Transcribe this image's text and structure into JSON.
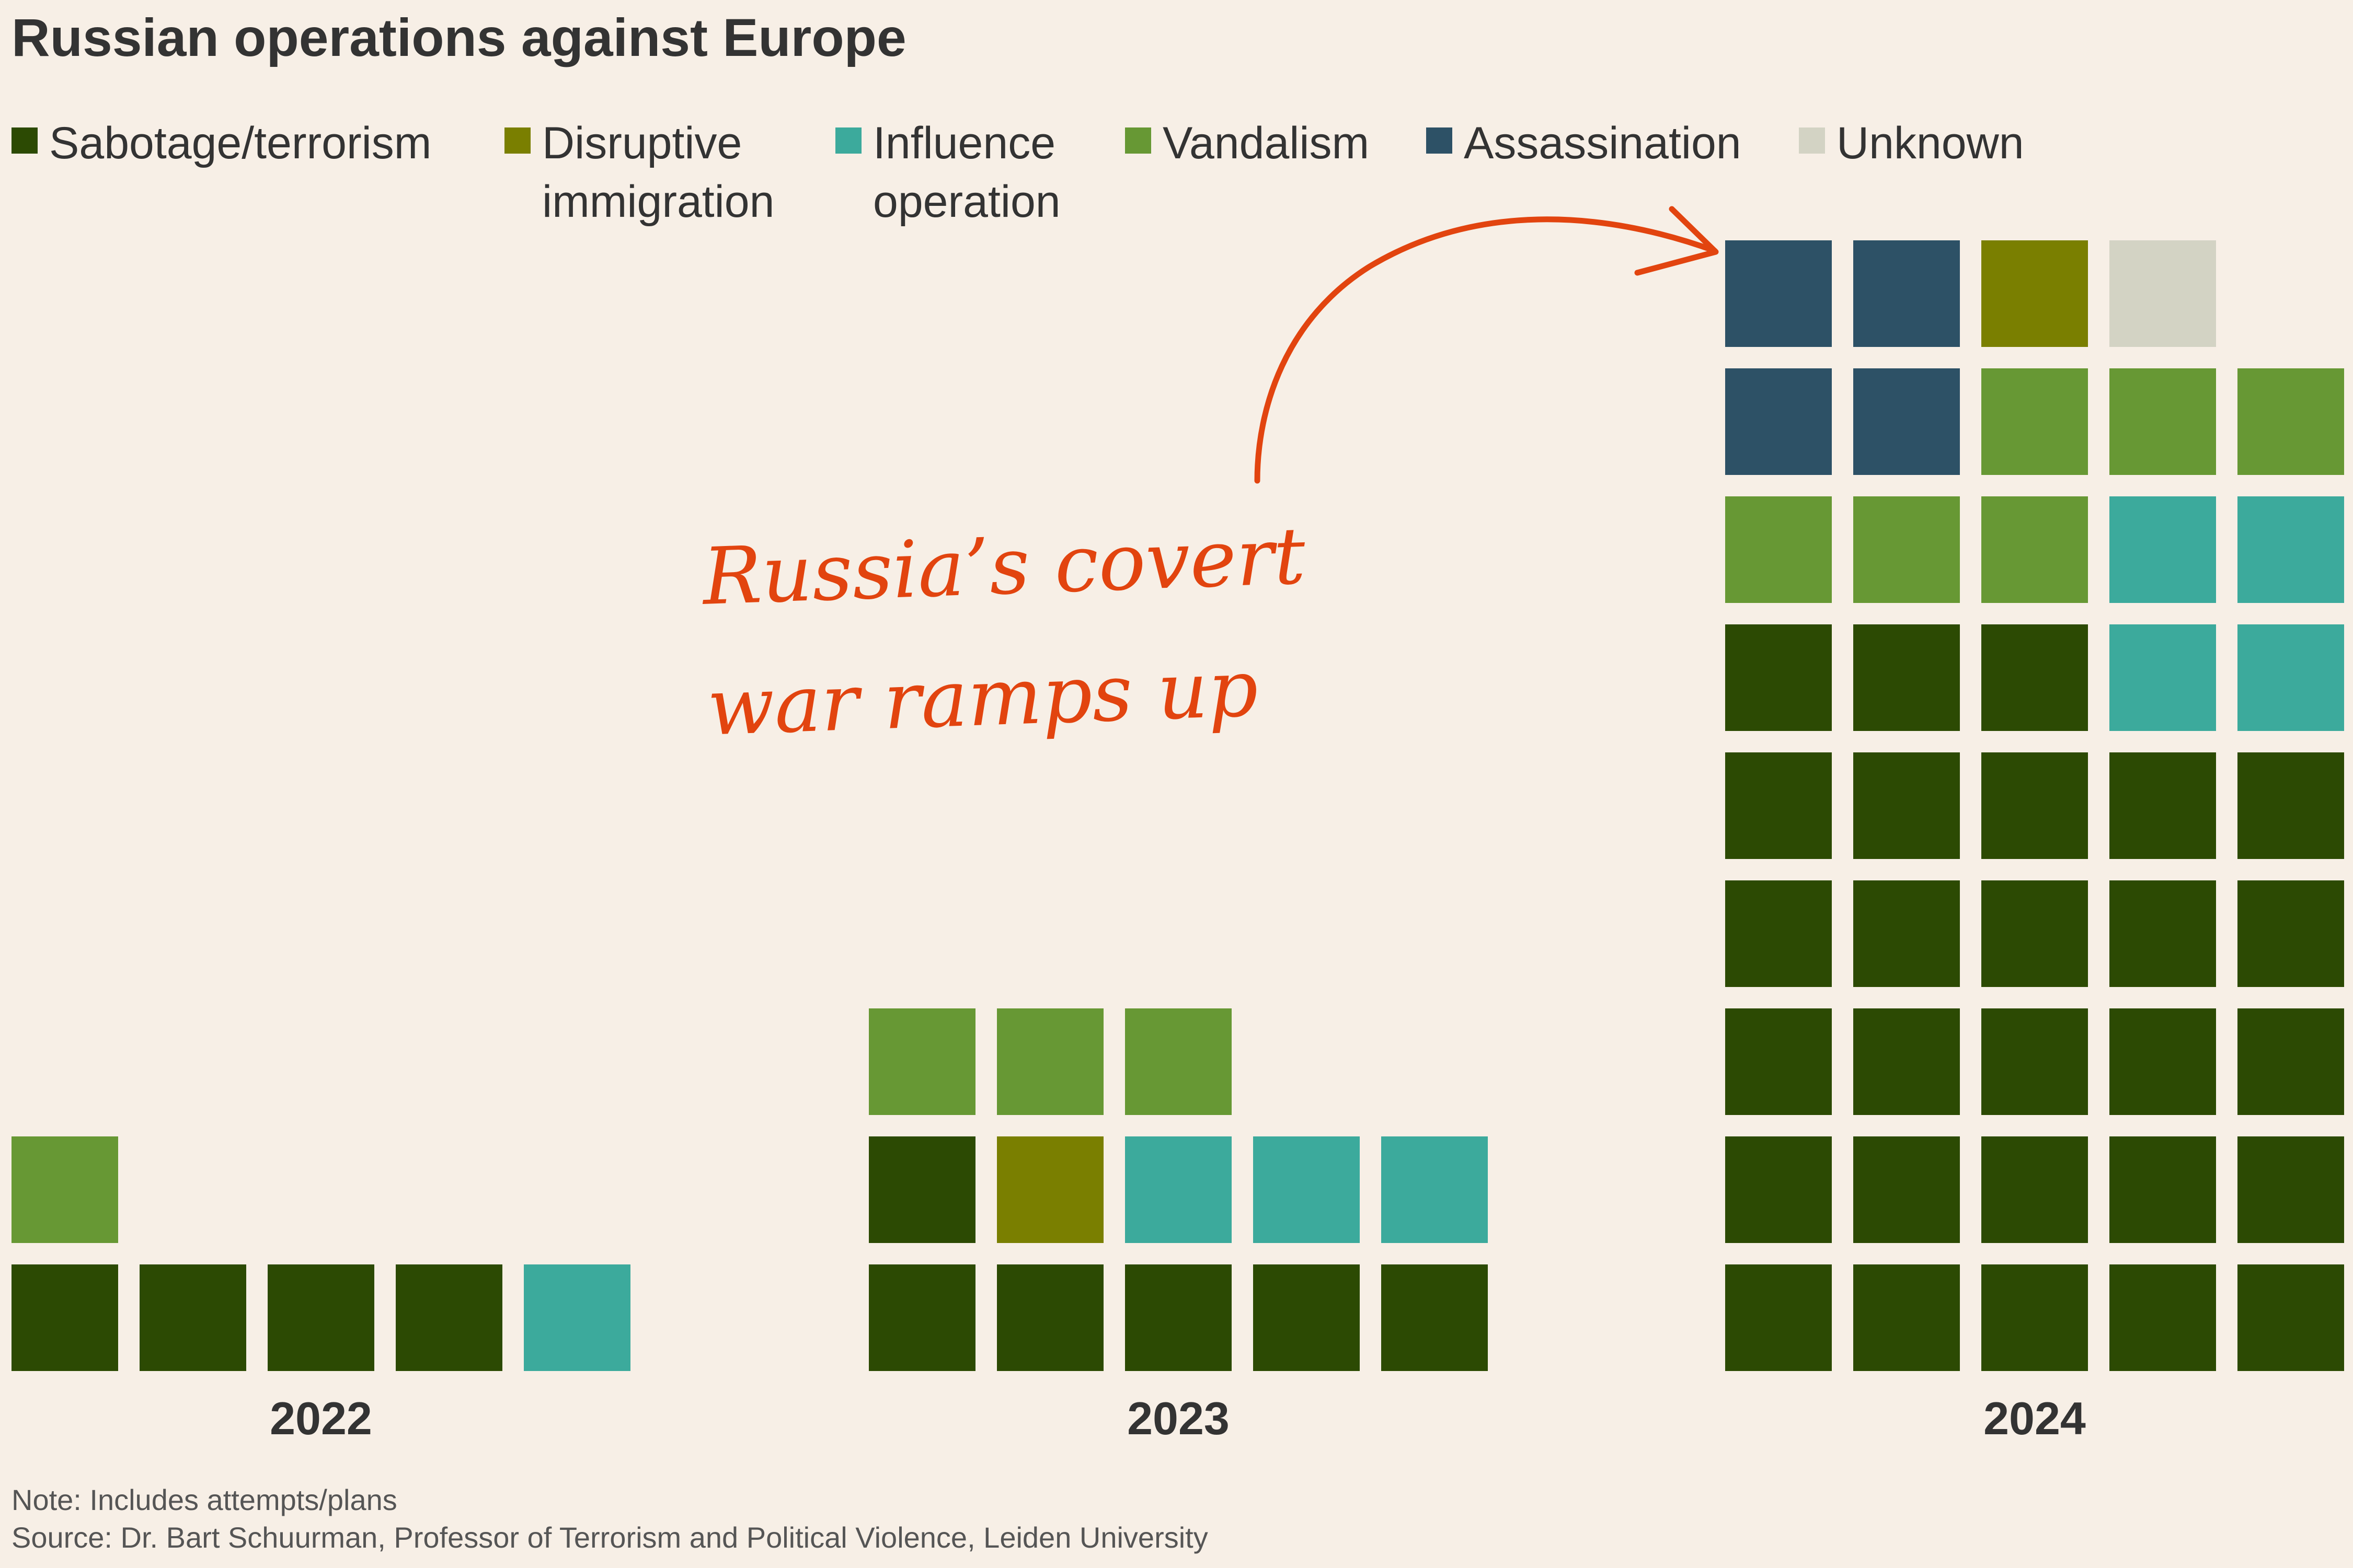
{
  "title": "Russian operations against Europe",
  "legend": [
    {
      "label": "Sabotage/terrorism",
      "color": "#2c4a03"
    },
    {
      "label": "Disruptive\nimmigration",
      "color": "#7a7f00"
    },
    {
      "label": "Influence\noperation",
      "color": "#3caa9c"
    },
    {
      "label": "Vandalism",
      "color": "#679834"
    },
    {
      "label": "Assassination",
      "color": "#2d5166"
    },
    {
      "label": "Unknown",
      "color": "#d3d3c4"
    }
  ],
  "annotation": {
    "text": "Russia’s covert\nwar ramps up",
    "color": "#e2440f"
  },
  "chart_data": {
    "type": "waffle",
    "title": "Russian operations against Europe",
    "categories": [
      "2022",
      "2023",
      "2024"
    ],
    "series": [
      {
        "name": "Sabotage/terrorism",
        "values": [
          4,
          6,
          28
        ]
      },
      {
        "name": "Disruptive immigration",
        "values": [
          0,
          1,
          1
        ]
      },
      {
        "name": "Influence operation",
        "values": [
          1,
          3,
          4
        ]
      },
      {
        "name": "Vandalism",
        "values": [
          1,
          3,
          6
        ]
      },
      {
        "name": "Assassination",
        "values": [
          0,
          0,
          4
        ]
      },
      {
        "name": "Unknown",
        "values": [
          0,
          0,
          1
        ]
      }
    ],
    "grids": [
      {
        "year": "2022",
        "rows": [
          [
            "Sabotage/terrorism",
            "Sabotage/terrorism",
            "Sabotage/terrorism",
            "Sabotage/terrorism",
            "Influence operation"
          ],
          [
            "Vandalism"
          ]
        ]
      },
      {
        "year": "2023",
        "rows": [
          [
            "Sabotage/terrorism",
            "Sabotage/terrorism",
            "Sabotage/terrorism",
            "Sabotage/terrorism",
            "Sabotage/terrorism"
          ],
          [
            "Sabotage/terrorism",
            "Disruptive immigration",
            "Influence operation",
            "Influence operation",
            "Influence operation"
          ],
          [
            "Vandalism",
            "Vandalism",
            "Vandalism"
          ]
        ]
      },
      {
        "year": "2024",
        "rows": [
          [
            "Sabotage/terrorism",
            "Sabotage/terrorism",
            "Sabotage/terrorism",
            "Sabotage/terrorism",
            "Sabotage/terrorism"
          ],
          [
            "Sabotage/terrorism",
            "Sabotage/terrorism",
            "Sabotage/terrorism",
            "Sabotage/terrorism",
            "Sabotage/terrorism"
          ],
          [
            "Sabotage/terrorism",
            "Sabotage/terrorism",
            "Sabotage/terrorism",
            "Sabotage/terrorism",
            "Sabotage/terrorism"
          ],
          [
            "Sabotage/terrorism",
            "Sabotage/terrorism",
            "Sabotage/terrorism",
            "Sabotage/terrorism",
            "Sabotage/terrorism"
          ],
          [
            "Sabotage/terrorism",
            "Sabotage/terrorism",
            "Sabotage/terrorism",
            "Sabotage/terrorism",
            "Sabotage/terrorism"
          ],
          [
            "Sabotage/terrorism",
            "Sabotage/terrorism",
            "Sabotage/terrorism",
            "Influence operation",
            "Influence operation"
          ],
          [
            "Vandalism",
            "Vandalism",
            "Vandalism",
            "Influence operation",
            "Influence operation"
          ],
          [
            "Assassination",
            "Assassination",
            "Vandalism",
            "Vandalism",
            "Vandalism"
          ],
          [
            "Assassination",
            "Assassination",
            "Disruptive immigration",
            "Unknown"
          ]
        ]
      }
    ]
  },
  "notes": {
    "note": "Note: Includes attempts/plans",
    "source": "Source: Dr. Bart Schuurman, Professor of Terrorism and Political Violence, Leiden University"
  }
}
